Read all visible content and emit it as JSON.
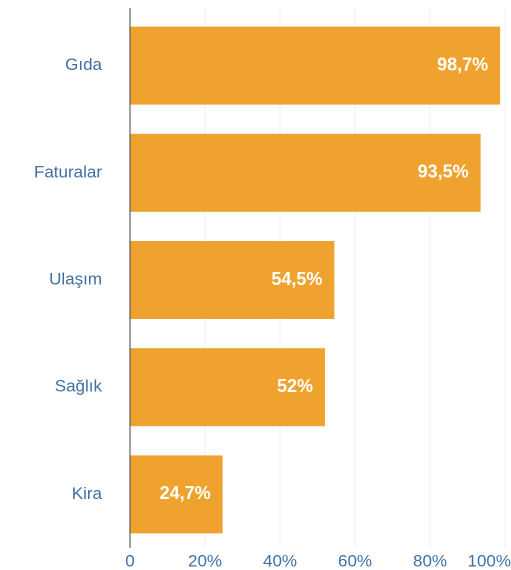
{
  "chart_data": {
    "type": "bar",
    "orientation": "horizontal",
    "categories": [
      "Gıda",
      "Faturalar",
      "Ulaşım",
      "Sağlık",
      "Kira"
    ],
    "values": [
      98.7,
      93.5,
      54.5,
      52,
      24.7
    ],
    "value_labels": [
      "98,7%",
      "93,5%",
      "54,5%",
      "52%",
      "24,7%"
    ],
    "color": "#f0a22e",
    "xlim": [
      0,
      100
    ],
    "xticks": [
      0,
      {
        "value": 20,
        "label": "20%"
      },
      {
        "value": 40,
        "label": "40%"
      },
      {
        "value": 60,
        "label": "60%"
      },
      {
        "value": 80,
        "label": "80%"
      },
      {
        "value": 100,
        "label": "100%"
      }
    ],
    "grid": true
  }
}
